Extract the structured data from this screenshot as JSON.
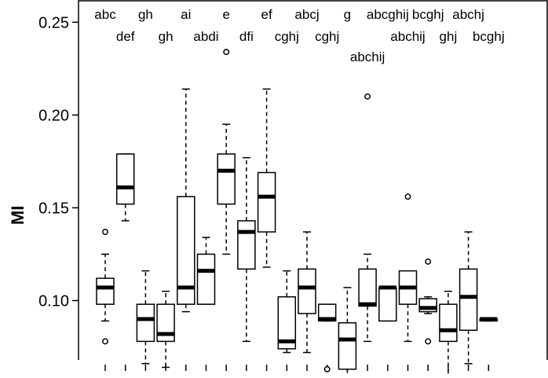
{
  "chart_data": {
    "type": "box",
    "ylabel": "MI",
    "ylim": [
      0.068,
      0.262
    ],
    "yticks": [
      0.1,
      0.15,
      0.2,
      0.25
    ],
    "ytick_labels": [
      "0.10",
      "0.15",
      "0.20",
      "0.25"
    ],
    "grid": false,
    "boxes": [
      {
        "letters": "abc",
        "whisker_low": 0.089,
        "q1": 0.098,
        "median": 0.107,
        "q3": 0.112,
        "whisker_high": 0.125,
        "outliers": [
          0.078,
          0.137
        ]
      },
      {
        "letters": "def",
        "whisker_low": 0.143,
        "q1": 0.152,
        "median": 0.161,
        "q3": 0.179,
        "whisker_high": 0.179,
        "outliers": []
      },
      {
        "letters": "gh",
        "whisker_low": 0.066,
        "q1": 0.078,
        "median": 0.09,
        "q3": 0.098,
        "whisker_high": 0.116,
        "outliers": []
      },
      {
        "letters": "gh",
        "whisker_low": 0.064,
        "q1": 0.078,
        "median": 0.082,
        "q3": 0.098,
        "whisker_high": 0.105,
        "outliers": []
      },
      {
        "letters": "ai",
        "whisker_low": 0.094,
        "q1": 0.098,
        "median": 0.107,
        "q3": 0.156,
        "whisker_high": 0.214,
        "outliers": []
      },
      {
        "letters": "abdi",
        "whisker_low": 0.098,
        "q1": 0.098,
        "median": 0.116,
        "q3": 0.125,
        "whisker_high": 0.134,
        "outliers": []
      },
      {
        "letters": "e",
        "whisker_low": 0.125,
        "q1": 0.152,
        "median": 0.17,
        "q3": 0.179,
        "whisker_high": 0.195,
        "outliers": [
          0.234
        ]
      },
      {
        "letters": "dfi",
        "whisker_low": 0.078,
        "q1": 0.117,
        "median": 0.137,
        "q3": 0.143,
        "whisker_high": 0.177,
        "outliers": []
      },
      {
        "letters": "ef",
        "whisker_low": 0.118,
        "q1": 0.137,
        "median": 0.156,
        "q3": 0.169,
        "whisker_high": 0.214,
        "outliers": []
      },
      {
        "letters": "cghj",
        "whisker_low": 0.072,
        "q1": 0.074,
        "median": 0.078,
        "q3": 0.102,
        "whisker_high": 0.116,
        "outliers": []
      },
      {
        "letters": "abcj",
        "whisker_low": 0.072,
        "q1": 0.093,
        "median": 0.107,
        "q3": 0.117,
        "whisker_high": 0.137,
        "outliers": []
      },
      {
        "letters": "cghj",
        "whisker_low": 0.089,
        "q1": 0.089,
        "median": 0.09,
        "q3": 0.098,
        "whisker_high": 0.098,
        "outliers": [
          0.063
        ]
      },
      {
        "letters": "g",
        "whisker_low": 0.06,
        "q1": 0.063,
        "median": 0.079,
        "q3": 0.088,
        "whisker_high": 0.107,
        "outliers": []
      },
      {
        "letters": "abchij",
        "whisker_low": 0.078,
        "q1": 0.097,
        "median": 0.098,
        "q3": 0.117,
        "whisker_high": 0.125,
        "outliers": [
          0.21
        ]
      },
      {
        "letters": "abcghij",
        "whisker_low": 0.089,
        "q1": 0.089,
        "median": 0.107,
        "q3": 0.107,
        "whisker_high": 0.107,
        "outliers": []
      },
      {
        "letters": "abchij",
        "whisker_low": 0.078,
        "q1": 0.098,
        "median": 0.107,
        "q3": 0.116,
        "whisker_high": 0.116,
        "outliers": [
          0.156
        ]
      },
      {
        "letters": "bcghj",
        "whisker_low": 0.093,
        "q1": 0.094,
        "median": 0.096,
        "q3": 0.101,
        "whisker_high": 0.102,
        "outliers": [
          0.078,
          0.121
        ]
      },
      {
        "letters": "ghj",
        "whisker_low": 0.06,
        "q1": 0.078,
        "median": 0.084,
        "q3": 0.098,
        "whisker_high": 0.105,
        "outliers": []
      },
      {
        "letters": "abchj",
        "whisker_low": 0.066,
        "q1": 0.084,
        "median": 0.102,
        "q3": 0.117,
        "whisker_high": 0.137,
        "outliers": []
      },
      {
        "letters": "bcghj",
        "whisker_low": 0.089,
        "q1": 0.089,
        "median": 0.09,
        "q3": 0.09,
        "whisker_high": 0.09,
        "outliers": []
      }
    ]
  }
}
